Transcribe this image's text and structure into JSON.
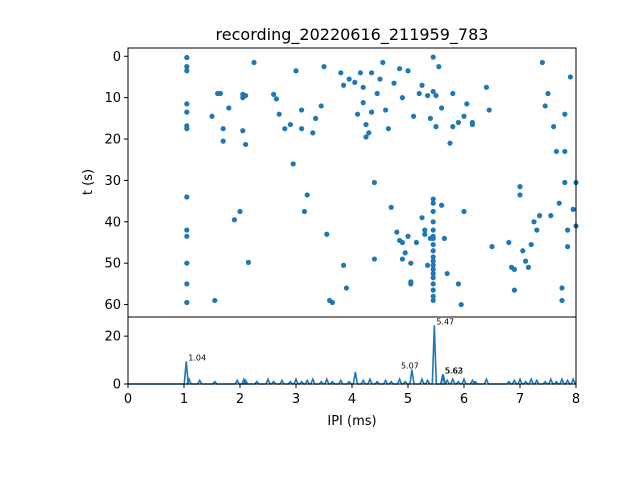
{
  "chart_data": [
    {
      "type": "scatter",
      "title": "recording_20220616_211959_783",
      "xlabel": "",
      "ylabel": "t (s)",
      "xlim": [
        0,
        8
      ],
      "ylim": [
        63,
        -2
      ],
      "yticks": [
        "0",
        "10",
        "20",
        "30",
        "40",
        "50",
        "60"
      ],
      "color": "#1f77b4",
      "points": [
        [
          1.05,
          0.3
        ],
        [
          1.05,
          2.5
        ],
        [
          1.05,
          3.5
        ],
        [
          1.05,
          11.5
        ],
        [
          1.05,
          13.5
        ],
        [
          1.05,
          16.8
        ],
        [
          1.05,
          17.5
        ],
        [
          1.05,
          34
        ],
        [
          1.05,
          42
        ],
        [
          1.05,
          43.5
        ],
        [
          1.05,
          50
        ],
        [
          1.05,
          55
        ],
        [
          1.05,
          59.5
        ],
        [
          1.5,
          14.5
        ],
        [
          1.55,
          59
        ],
        [
          1.6,
          9
        ],
        [
          1.65,
          9
        ],
        [
          1.7,
          17.5
        ],
        [
          1.7,
          20.5
        ],
        [
          1.8,
          12.5
        ],
        [
          1.9,
          39.5
        ],
        [
          2.0,
          37.5
        ],
        [
          2.05,
          9.2
        ],
        [
          2.05,
          10
        ],
        [
          2.05,
          18
        ],
        [
          2.1,
          21.3
        ],
        [
          2.1,
          9.5
        ],
        [
          2.15,
          49.8
        ],
        [
          2.25,
          1.5
        ],
        [
          2.6,
          9.2
        ],
        [
          2.65,
          10.3
        ],
        [
          2.7,
          14
        ],
        [
          2.8,
          17.5
        ],
        [
          2.9,
          16.5
        ],
        [
          2.95,
          26
        ],
        [
          3.0,
          3.5
        ],
        [
          3.1,
          13
        ],
        [
          3.1,
          17.5
        ],
        [
          3.15,
          37.5
        ],
        [
          3.2,
          33.5
        ],
        [
          3.3,
          18.5
        ],
        [
          3.35,
          15
        ],
        [
          3.45,
          12
        ],
        [
          3.5,
          2.5
        ],
        [
          3.55,
          43
        ],
        [
          3.6,
          59
        ],
        [
          3.65,
          59.5
        ],
        [
          3.8,
          4
        ],
        [
          3.85,
          7
        ],
        [
          3.85,
          50.5
        ],
        [
          3.9,
          56
        ],
        [
          3.95,
          5.5
        ],
        [
          4.05,
          6.3
        ],
        [
          4.1,
          14
        ],
        [
          4.15,
          4
        ],
        [
          4.2,
          7.5
        ],
        [
          4.2,
          11.2
        ],
        [
          4.25,
          16.5
        ],
        [
          4.25,
          19.5
        ],
        [
          4.3,
          18.5
        ],
        [
          4.35,
          4
        ],
        [
          4.35,
          13.5
        ],
        [
          4.4,
          30.5
        ],
        [
          4.4,
          49
        ],
        [
          4.45,
          9
        ],
        [
          4.5,
          5.5
        ],
        [
          4.55,
          1.5
        ],
        [
          4.6,
          13
        ],
        [
          4.65,
          17.5
        ],
        [
          4.7,
          36.5
        ],
        [
          4.75,
          6.5
        ],
        [
          4.8,
          42.5
        ],
        [
          4.85,
          3
        ],
        [
          4.85,
          44.5
        ],
        [
          4.9,
          45
        ],
        [
          4.9,
          49
        ],
        [
          4.9,
          10
        ],
        [
          4.95,
          47.5
        ],
        [
          5.0,
          3.5
        ],
        [
          5.0,
          43.5
        ],
        [
          5.05,
          50
        ],
        [
          5.05,
          54.5
        ],
        [
          5.05,
          55
        ],
        [
          5.1,
          14.5
        ],
        [
          5.15,
          45
        ],
        [
          5.2,
          9
        ],
        [
          5.25,
          7
        ],
        [
          5.25,
          39
        ],
        [
          5.3,
          42
        ],
        [
          5.3,
          43
        ],
        [
          5.35,
          50.5
        ],
        [
          5.35,
          9.5
        ],
        [
          5.4,
          15
        ],
        [
          5.4,
          44
        ],
        [
          5.45,
          0.2
        ],
        [
          5.45,
          8.5
        ],
        [
          5.45,
          34.5
        ],
        [
          5.45,
          35.5
        ],
        [
          5.45,
          37.5
        ],
        [
          5.45,
          40
        ],
        [
          5.45,
          42
        ],
        [
          5.45,
          43.5
        ],
        [
          5.45,
          44
        ],
        [
          5.45,
          45.5
        ],
        [
          5.45,
          47
        ],
        [
          5.45,
          48.5
        ],
        [
          5.45,
          49.5
        ],
        [
          5.45,
          50.5
        ],
        [
          5.45,
          51.5
        ],
        [
          5.45,
          52.5
        ],
        [
          5.45,
          53.5
        ],
        [
          5.45,
          55
        ],
        [
          5.45,
          56.5
        ],
        [
          5.45,
          58
        ],
        [
          5.45,
          59
        ],
        [
          5.5,
          9.5
        ],
        [
          5.5,
          17
        ],
        [
          5.55,
          2.5
        ],
        [
          5.6,
          12.5
        ],
        [
          5.6,
          36
        ],
        [
          5.65,
          44
        ],
        [
          5.7,
          52.5
        ],
        [
          5.75,
          21
        ],
        [
          5.8,
          9
        ],
        [
          5.8,
          17
        ],
        [
          5.9,
          16
        ],
        [
          5.9,
          55
        ],
        [
          5.95,
          60
        ],
        [
          6.0,
          37.5
        ],
        [
          6.0,
          14.5
        ],
        [
          6.05,
          11.5
        ],
        [
          6.15,
          16.5
        ],
        [
          6.15,
          16
        ],
        [
          6.4,
          7.5
        ],
        [
          6.45,
          13
        ],
        [
          6.5,
          46
        ],
        [
          6.8,
          45
        ],
        [
          6.85,
          51
        ],
        [
          6.9,
          51.5
        ],
        [
          6.9,
          56.5
        ],
        [
          7.0,
          31.5
        ],
        [
          7.0,
          33.5
        ],
        [
          7.05,
          47
        ],
        [
          7.1,
          49.5
        ],
        [
          7.15,
          51
        ],
        [
          7.2,
          45.5
        ],
        [
          7.25,
          40
        ],
        [
          7.3,
          42
        ],
        [
          7.35,
          38.5
        ],
        [
          7.4,
          1.5
        ],
        [
          7.45,
          12
        ],
        [
          7.5,
          9
        ],
        [
          7.55,
          38.5
        ],
        [
          7.6,
          17
        ],
        [
          7.65,
          23
        ],
        [
          7.7,
          35.5
        ],
        [
          7.75,
          59
        ],
        [
          7.75,
          56
        ],
        [
          7.8,
          14
        ],
        [
          7.8,
          30.5
        ],
        [
          7.8,
          23
        ],
        [
          7.85,
          42
        ],
        [
          7.85,
          46
        ],
        [
          7.9,
          5
        ],
        [
          7.95,
          37
        ],
        [
          8.0,
          30.5
        ],
        [
          8.0,
          41
        ]
      ]
    },
    {
      "type": "line",
      "xlabel": "IPI (ms)",
      "ylabel": "",
      "xlim": [
        0,
        8
      ],
      "ylim": [
        0,
        28
      ],
      "xticks": [
        "0",
        "1",
        "2",
        "3",
        "4",
        "5",
        "6",
        "7",
        "8"
      ],
      "yticks": [
        "0",
        "20"
      ],
      "color": "#1f77b4",
      "peaks": [
        {
          "x": 1.04,
          "y": 9.5,
          "label": "1.04"
        },
        {
          "x": 5.07,
          "y": 6,
          "label": "5.07"
        },
        {
          "x": 5.47,
          "y": 24.5,
          "label": "5.47"
        },
        {
          "x": 5.62,
          "y": 4,
          "label": "5.62"
        },
        {
          "x": 5.63,
          "y": 4,
          "label": "5.63"
        }
      ],
      "small_bumps": [
        [
          1.09,
          2
        ],
        [
          1.28,
          1.5
        ],
        [
          1.55,
          1
        ],
        [
          1.95,
          1.5
        ],
        [
          2.07,
          2
        ],
        [
          2.1,
          1.5
        ],
        [
          2.3,
          1
        ],
        [
          2.5,
          2
        ],
        [
          2.6,
          1
        ],
        [
          2.75,
          1.5
        ],
        [
          2.9,
          1
        ],
        [
          3.0,
          2
        ],
        [
          3.1,
          1
        ],
        [
          3.2,
          1.5
        ],
        [
          3.3,
          2
        ],
        [
          3.45,
          1
        ],
        [
          3.55,
          2
        ],
        [
          3.65,
          1
        ],
        [
          3.8,
          1.5
        ],
        [
          3.95,
          1
        ],
        [
          4.06,
          5
        ],
        [
          4.2,
          1.5
        ],
        [
          4.32,
          2
        ],
        [
          4.45,
          1
        ],
        [
          4.6,
          1.5
        ],
        [
          4.7,
          1
        ],
        [
          4.85,
          2
        ],
        [
          4.95,
          1
        ],
        [
          5.25,
          2
        ],
        [
          5.35,
          1.5
        ],
        [
          5.7,
          1.5
        ],
        [
          5.8,
          2
        ],
        [
          5.9,
          1
        ],
        [
          6.0,
          2
        ],
        [
          6.15,
          1.5
        ],
        [
          6.2,
          1
        ],
        [
          6.4,
          2
        ],
        [
          6.8,
          1
        ],
        [
          6.9,
          1.5
        ],
        [
          7.0,
          2
        ],
        [
          7.1,
          1
        ],
        [
          7.2,
          2
        ],
        [
          7.3,
          1.5
        ],
        [
          7.45,
          1
        ],
        [
          7.55,
          2
        ],
        [
          7.65,
          1
        ],
        [
          7.75,
          2
        ],
        [
          7.85,
          1.5
        ],
        [
          7.95,
          2
        ]
      ]
    }
  ]
}
